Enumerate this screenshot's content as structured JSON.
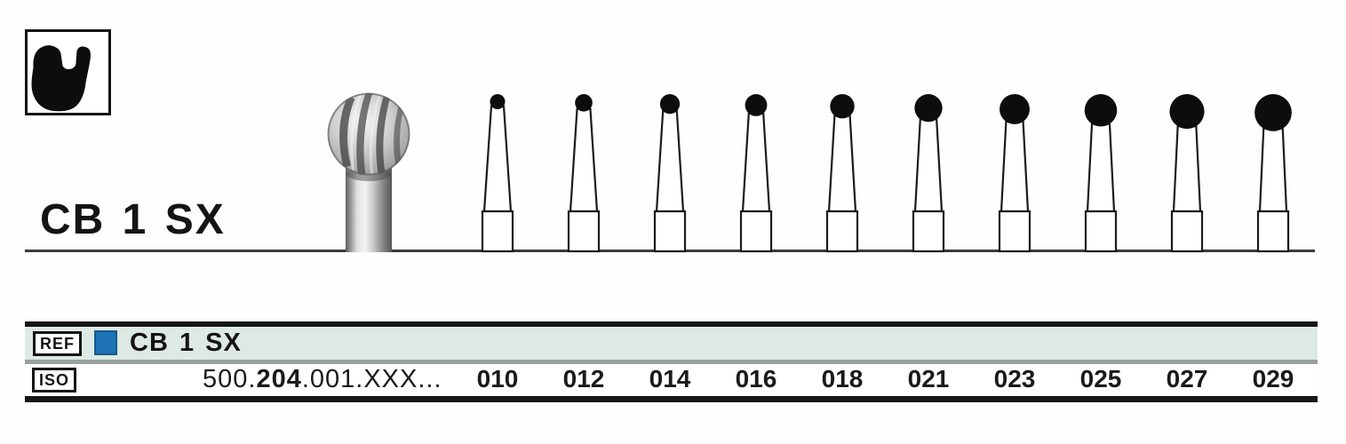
{
  "product": {
    "code": "CB 1 SX",
    "tooth_icon": "molar-silhouette",
    "large_figure": "round-carbide-bur-photo"
  },
  "colors": {
    "brand_blue": "#1e74b4",
    "ref_row_bg": "#dde9e4",
    "divider_gray": "#9aa19f",
    "table_bar_black": "#161616",
    "ground_line": "#3a3a3a"
  },
  "spec_table": {
    "ref_label": "REF",
    "ref_value": "CB 1 SX",
    "iso_label": "ISO",
    "iso_code": {
      "prefix": "500.",
      "bold": "204",
      "suffix": ".001.XXX..."
    },
    "sizes": [
      "010",
      "012",
      "014",
      "016",
      "018",
      "021",
      "023",
      "025",
      "027",
      "029"
    ]
  }
}
